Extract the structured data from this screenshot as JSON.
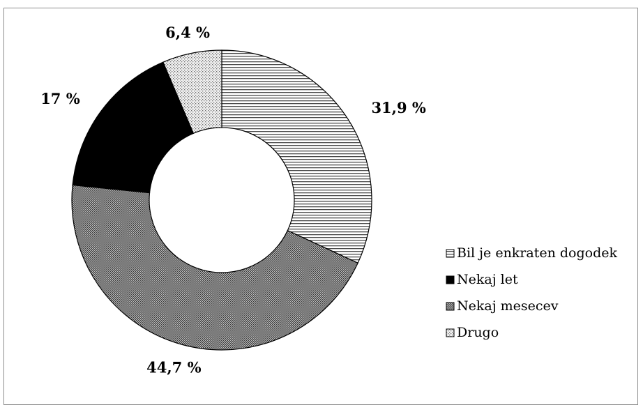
{
  "chart_data": {
    "type": "pie",
    "donut": true,
    "categories": [
      "Bil je enkraten dogodek",
      "Nekaj let",
      "Nekaj mesecev",
      "Drugo"
    ],
    "values": [
      31.9,
      17,
      44.7,
      6.4
    ],
    "labels": [
      "31,9 %",
      "17 %",
      "44,7 %",
      "6,4 %"
    ],
    "series": [
      {
        "name": "Bil je enkraten dogodek",
        "value": 31.9,
        "label": "31,9 %",
        "pattern": "horizontal-lines"
      },
      {
        "name": "Nekaj mesecev",
        "value": 44.7,
        "label": "44,7 %",
        "pattern": "dense-dots"
      },
      {
        "name": "Nekaj let",
        "value": 17,
        "label": "17 %",
        "pattern": "solid-black"
      },
      {
        "name": "Drugo",
        "value": 6.4,
        "label": "6,4 %",
        "pattern": "light-dots"
      }
    ],
    "legend_position": "right"
  },
  "legend": [
    {
      "label": "Bil je enkraten dogodek",
      "pattern": "horizontal-lines"
    },
    {
      "label": "Nekaj let",
      "pattern": "solid-black"
    },
    {
      "label": "Nekaj mesecev",
      "pattern": "dense-dots"
    },
    {
      "label": "Drugo",
      "pattern": "light-dots"
    }
  ]
}
